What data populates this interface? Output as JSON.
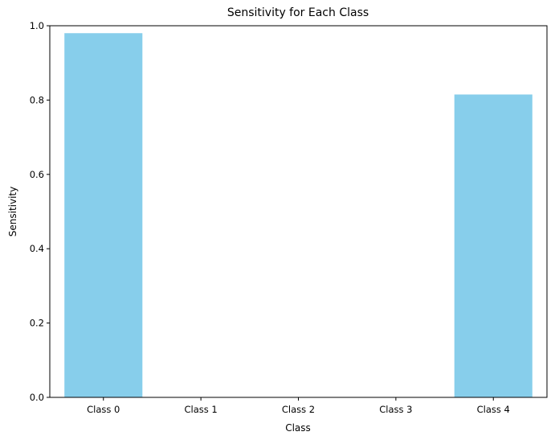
{
  "chart_data": {
    "type": "bar",
    "title": "Sensitivity for Each Class",
    "xlabel": "Class",
    "ylabel": "Sensitivity",
    "categories": [
      "Class 0",
      "Class 1",
      "Class 2",
      "Class 3",
      "Class 4"
    ],
    "values": [
      0.98,
      0.0,
      0.0,
      0.0,
      0.815
    ],
    "ylim": [
      0,
      1.0
    ],
    "yticks": [
      0.0,
      0.2,
      0.4,
      0.6,
      0.8,
      1.0
    ],
    "ytick_labels": [
      "0.0",
      "0.2",
      "0.4",
      "0.6",
      "0.8",
      "1.0"
    ],
    "bar_color": "#87ceeb",
    "grid": false,
    "legend": "none"
  }
}
